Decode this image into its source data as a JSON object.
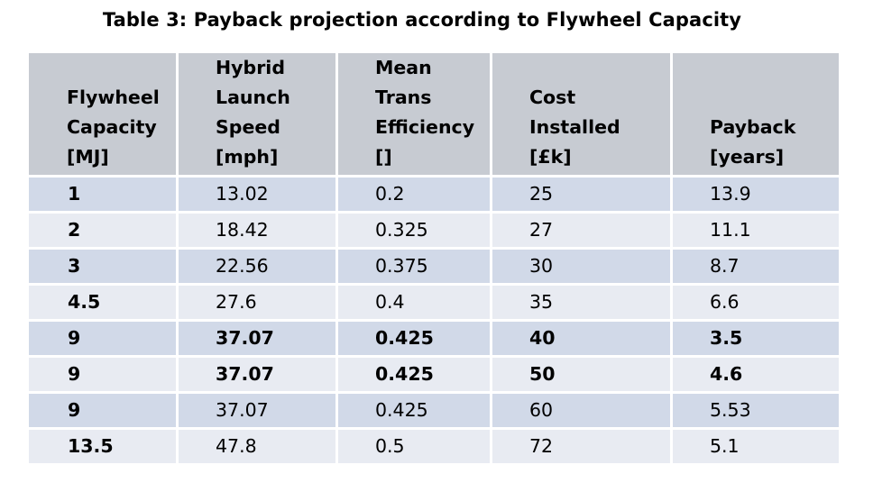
{
  "caption": "Table 3: Payback projection according to Flywheel Capacity",
  "table": {
    "headers": [
      {
        "lines": [
          "Flywheel",
          "Capacity",
          "[MJ]"
        ]
      },
      {
        "lines": [
          "Hybrid",
          "Launch",
          "Speed",
          "[mph]"
        ]
      },
      {
        "lines": [
          "Mean",
          "Trans",
          "Efficiency",
          "[]"
        ]
      },
      {
        "lines": [
          "Cost",
          "Installed",
          "[£k]"
        ]
      },
      {
        "lines": [
          "Payback",
          "[years]"
        ]
      }
    ],
    "rows": [
      {
        "cells": [
          "1",
          "13.02",
          "0.2",
          "25",
          "13.9"
        ],
        "bold": false
      },
      {
        "cells": [
          "2",
          "18.42",
          "0.325",
          "27",
          "11.1"
        ],
        "bold": false
      },
      {
        "cells": [
          "3",
          "22.56",
          "0.375",
          "30",
          "8.7"
        ],
        "bold": false
      },
      {
        "cells": [
          "4.5",
          "27.6",
          "0.4",
          "35",
          "6.6"
        ],
        "bold": false
      },
      {
        "cells": [
          "9",
          "37.07",
          "0.425",
          "40",
          "3.5"
        ],
        "bold": true
      },
      {
        "cells": [
          "9",
          "37.07",
          "0.425",
          "50",
          "4.6"
        ],
        "bold": true
      },
      {
        "cells": [
          "9",
          "37.07",
          "0.425",
          "60",
          "5.53"
        ],
        "bold": false
      },
      {
        "cells": [
          "13.5",
          "47.8",
          "0.5",
          "72",
          "5.1"
        ],
        "bold": false
      }
    ]
  }
}
